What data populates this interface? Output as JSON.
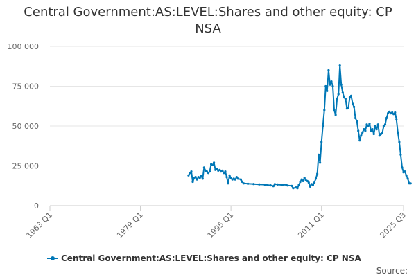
{
  "chart_data": {
    "type": "line",
    "title_lines": [
      "Central Government:AS:LEVEL:Shares and other equity: CP",
      "NSA"
    ],
    "x_ticks": [
      "1963 Q1",
      "1979 Q1",
      "1995 Q1",
      "2011 Q1",
      "2025 Q3"
    ],
    "y_ticks": [
      "0",
      "25 000",
      "50 000",
      "75 000",
      "100 000"
    ],
    "ylim": [
      0,
      100000
    ],
    "grid": "horizontal",
    "legend_position": "bottom-left",
    "series": [
      {
        "name": "Central Government:AS:LEVEL:Shares and other equity: CP NSA",
        "color": "#0077b6",
        "points": [
          [
            "1987 Q3",
            19000
          ],
          [
            "1987 Q4",
            20500
          ],
          [
            "1988 Q1",
            21500
          ],
          [
            "1988 Q2",
            15000
          ],
          [
            "1988 Q3",
            17500
          ],
          [
            "1988 Q4",
            18000
          ],
          [
            "1989 Q1",
            16500
          ],
          [
            "1989 Q2",
            18000
          ],
          [
            "1989 Q3",
            17500
          ],
          [
            "1989 Q4",
            18500
          ],
          [
            "1990 Q1",
            17000
          ],
          [
            "1990 Q2",
            24000
          ],
          [
            "1990 Q3",
            22000
          ],
          [
            "1990 Q4",
            21500
          ],
          [
            "1991 Q1",
            20500
          ],
          [
            "1991 Q2",
            21500
          ],
          [
            "1991 Q3",
            26000
          ],
          [
            "1991 Q4",
            25500
          ],
          [
            "1992 Q1",
            27000
          ],
          [
            "1992 Q2",
            22500
          ],
          [
            "1992 Q3",
            23000
          ],
          [
            "1992 Q4",
            22000
          ],
          [
            "1993 Q1",
            22500
          ],
          [
            "1993 Q2",
            21500
          ],
          [
            "1993 Q3",
            22000
          ],
          [
            "1993 Q4",
            20500
          ],
          [
            "1994 Q1",
            21500
          ],
          [
            "1994 Q2",
            18000
          ],
          [
            "1994 Q3",
            14000
          ],
          [
            "1994 Q4",
            19000
          ],
          [
            "1995 Q1",
            17500
          ],
          [
            "1995 Q2",
            16500
          ],
          [
            "1995 Q3",
            17000
          ],
          [
            "1995 Q4",
            16500
          ],
          [
            "1996 Q1",
            18000
          ],
          [
            "1996 Q2",
            17000
          ],
          [
            "1996 Q4",
            16500
          ],
          [
            "1997 Q1",
            15000
          ],
          [
            "1997 Q2",
            14000
          ],
          [
            "1998 Q1",
            13800
          ],
          [
            "1999 Q1",
            13600
          ],
          [
            "2000 Q1",
            13400
          ],
          [
            "2001 Q1",
            13200
          ],
          [
            "2002 Q1",
            12800
          ],
          [
            "2002 Q3",
            12300
          ],
          [
            "2002 Q4",
            13500
          ],
          [
            "2003 Q2",
            13300
          ],
          [
            "2004 Q1",
            13000
          ],
          [
            "2004 Q4",
            13200
          ],
          [
            "2005 Q1",
            12700
          ],
          [
            "2005 Q4",
            12500
          ],
          [
            "2006 Q1",
            11000
          ],
          [
            "2006 Q3",
            11500
          ],
          [
            "2006 Q4",
            11000
          ],
          [
            "2007 Q1",
            13000
          ],
          [
            "2007 Q2",
            15000
          ],
          [
            "2007 Q3",
            16500
          ],
          [
            "2007 Q4",
            15500
          ],
          [
            "2008 Q1",
            17500
          ],
          [
            "2008 Q2",
            16000
          ],
          [
            "2008 Q3",
            15500
          ],
          [
            "2008 Q4",
            14500
          ],
          [
            "2009 Q1",
            12000
          ],
          [
            "2009 Q2",
            13500
          ],
          [
            "2009 Q3",
            13000
          ],
          [
            "2009 Q4",
            14500
          ],
          [
            "2010 Q1",
            17000
          ],
          [
            "2010 Q2",
            20000
          ],
          [
            "2010 Q3",
            32000
          ],
          [
            "2010 Q4",
            27000
          ],
          [
            "2011 Q1",
            40000
          ],
          [
            "2011 Q2",
            50000
          ],
          [
            "2011 Q3",
            60000
          ],
          [
            "2011 Q4",
            75000
          ],
          [
            "2012 Q1",
            72000
          ],
          [
            "2012 Q2",
            85000
          ],
          [
            "2012 Q3",
            76000
          ],
          [
            "2012 Q4",
            78000
          ],
          [
            "2013 Q1",
            75000
          ],
          [
            "2013 Q2",
            60000
          ],
          [
            "2013 Q3",
            57000
          ],
          [
            "2013 Q4",
            67000
          ],
          [
            "2014 Q1",
            70000
          ],
          [
            "2014 Q2",
            88000
          ],
          [
            "2014 Q3",
            76000
          ],
          [
            "2014 Q4",
            71000
          ],
          [
            "2015 Q1",
            68000
          ],
          [
            "2015 Q2",
            67000
          ],
          [
            "2015 Q3",
            61000
          ],
          [
            "2015 Q4",
            61500
          ],
          [
            "2016 Q1",
            68000
          ],
          [
            "2016 Q2",
            69000
          ],
          [
            "2016 Q3",
            64000
          ],
          [
            "2016 Q4",
            62000
          ],
          [
            "2017 Q1",
            55000
          ],
          [
            "2017 Q2",
            53000
          ],
          [
            "2017 Q3",
            47000
          ],
          [
            "2017 Q4",
            41000
          ],
          [
            "2018 Q1",
            44000
          ],
          [
            "2018 Q2",
            46000
          ],
          [
            "2018 Q3",
            48000
          ],
          [
            "2018 Q4",
            47000
          ],
          [
            "2019 Q1",
            51000
          ],
          [
            "2019 Q2",
            50000
          ],
          [
            "2019 Q3",
            51500
          ],
          [
            "2019 Q4",
            47000
          ],
          [
            "2020 Q1",
            48000
          ],
          [
            "2020 Q2",
            45000
          ],
          [
            "2020 Q3",
            50000
          ],
          [
            "2020 Q4",
            48000
          ],
          [
            "2021 Q1",
            51000
          ],
          [
            "2021 Q2",
            44000
          ],
          [
            "2021 Q3",
            45000
          ],
          [
            "2021 Q4",
            45500
          ],
          [
            "2022 Q1",
            50000
          ],
          [
            "2022 Q2",
            51000
          ],
          [
            "2022 Q3",
            55000
          ],
          [
            "2022 Q4",
            58000
          ],
          [
            "2023 Q1",
            59000
          ],
          [
            "2023 Q2",
            58000
          ],
          [
            "2023 Q3",
            58500
          ],
          [
            "2023 Q4",
            57500
          ],
          [
            "2024 Q1",
            58500
          ],
          [
            "2024 Q2",
            54000
          ],
          [
            "2024 Q3",
            46000
          ],
          [
            "2024 Q4",
            40000
          ],
          [
            "2025 Q1",
            32000
          ],
          [
            "2025 Q2",
            24000
          ],
          [
            "2025 Q3",
            21000
          ],
          [
            "2025 Q4",
            21500
          ],
          [
            "2026 Q1",
            19000
          ],
          [
            "2026 Q2",
            17000
          ],
          [
            "2026 Q3",
            14000
          ],
          [
            "2026 Q4",
            14000
          ]
        ]
      }
    ]
  },
  "source_label": "Source:"
}
